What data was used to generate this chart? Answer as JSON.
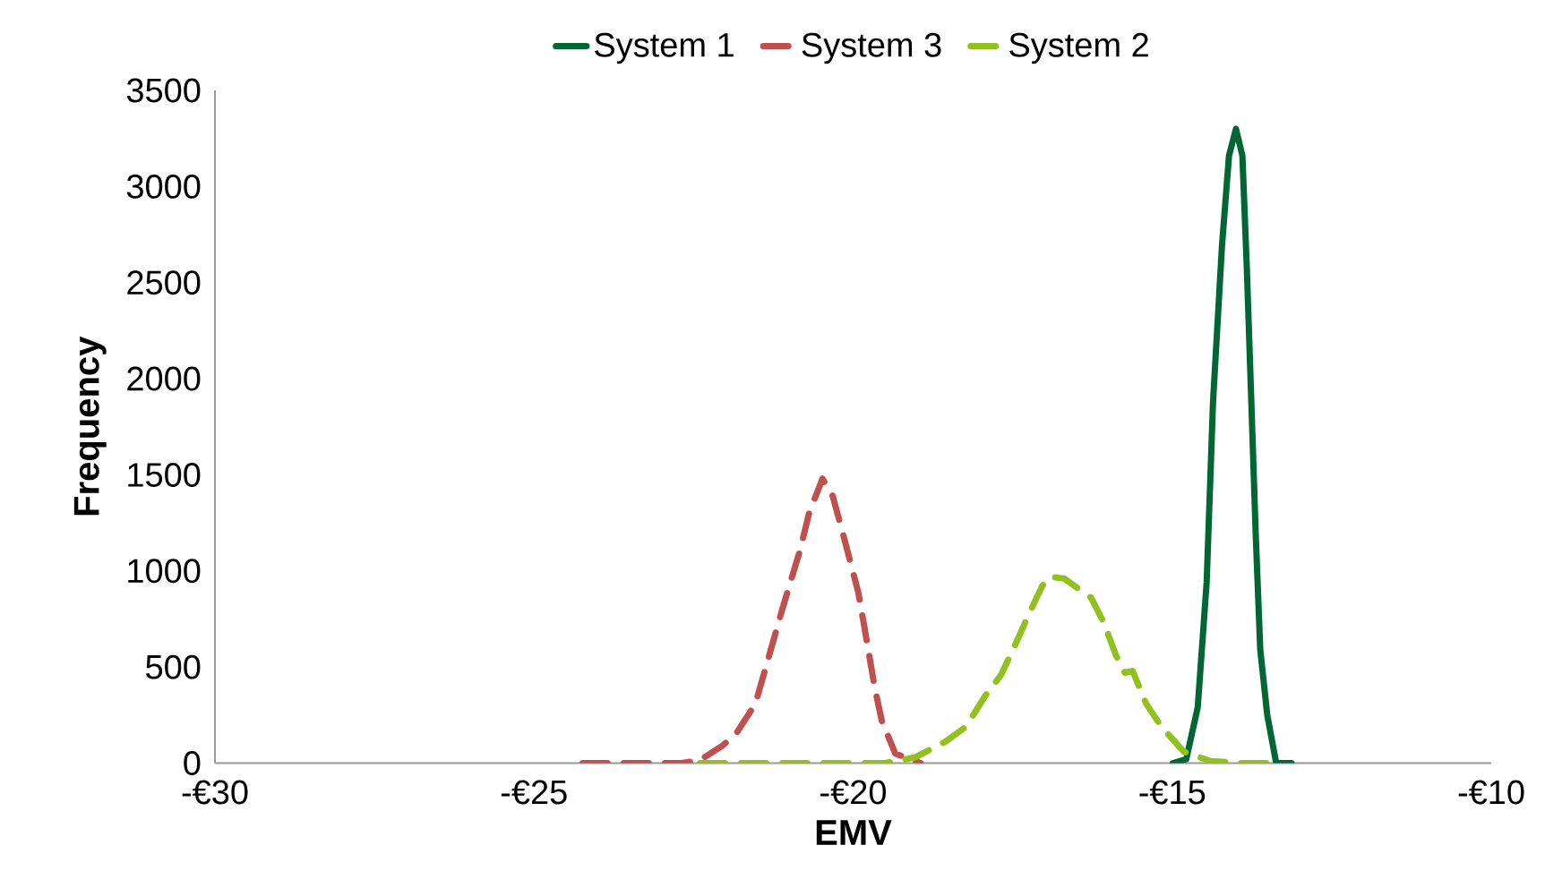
{
  "chart_data": {
    "type": "line",
    "xlabel": "EMV",
    "ylabel": "Frequency",
    "xlim": [
      -30,
      -10
    ],
    "xticks": [
      {
        "value": -30,
        "label": "-€30"
      },
      {
        "value": -25,
        "label": "-€25"
      },
      {
        "value": -20,
        "label": "-€20"
      },
      {
        "value": -15,
        "label": "-€15"
      },
      {
        "value": -10,
        "label": "-€10"
      }
    ],
    "ylim": [
      0,
      3500
    ],
    "yticks": [
      0,
      500,
      1000,
      1500,
      2000,
      2500,
      3000,
      3500
    ],
    "grid": false,
    "legend": "top",
    "marker": "none",
    "series": [
      {
        "name": "System 1",
        "color": "#006633",
        "line_style": "solid",
        "x": [
          -14.99,
          -14.78,
          -14.6,
          -14.46,
          -14.36,
          -14.22,
          -14.11,
          -14.0,
          -13.9,
          -13.83,
          -13.76,
          -13.69,
          -13.62,
          -13.51,
          -13.37,
          -13.13
        ],
        "values": [
          0,
          20,
          290,
          940,
          1880,
          2690,
          3160,
          3300,
          3160,
          2570,
          1880,
          1180,
          590,
          250,
          0,
          0
        ]
      },
      {
        "name": "System 3",
        "color": "#c0504d",
        "line_style": "dashed",
        "x": [
          -24.24,
          -23.2,
          -22.7,
          -22.4,
          -22.05,
          -21.84,
          -21.53,
          -21.11,
          -20.83,
          -20.69,
          -20.48,
          -20.32,
          -20.18,
          -19.92,
          -19.83,
          -19.66,
          -19.55,
          -19.34,
          -18.94
        ],
        "values": [
          0,
          0,
          0,
          15,
          90,
          150,
          310,
          800,
          1110,
          1300,
          1480,
          1390,
          1220,
          890,
          720,
          390,
          220,
          50,
          0
        ]
      },
      {
        "name": "System 2",
        "color": "#92c01f",
        "line_style": "dashed",
        "x": [
          -22.4,
          -20.5,
          -19.5,
          -19.03,
          -18.56,
          -18.23,
          -17.93,
          -17.68,
          -17.44,
          -17.28,
          -17.04,
          -16.91,
          -16.69,
          -16.27,
          -16.07,
          -15.88,
          -15.74,
          -15.62,
          -15.41,
          -15.17,
          -14.82,
          -14.4,
          -13.91,
          -13.42
        ],
        "values": [
          0,
          0,
          0,
          30,
          110,
          190,
          350,
          460,
          630,
          750,
          920,
          970,
          960,
          860,
          730,
          560,
          470,
          480,
          310,
          190,
          60,
          10,
          0,
          0
        ]
      }
    ]
  }
}
